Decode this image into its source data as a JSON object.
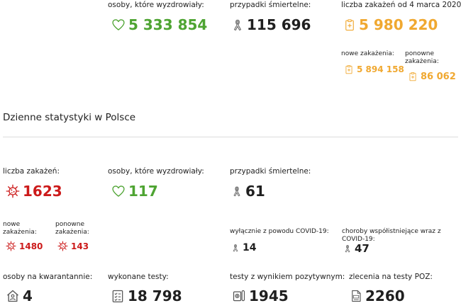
{
  "totals": {
    "recovered": {
      "label": "osoby, które wyzdrowiały:",
      "value": "5 333 854"
    },
    "deaths": {
      "label": "przypadki śmiertelne:",
      "value": "115 696"
    },
    "cases_since": {
      "label": "liczba zakażeń od 4 marca 2020:",
      "value": "5 980 220"
    },
    "new_cases": {
      "label": "nowe zakażenia:",
      "value": "5 894 158"
    },
    "re_cases": {
      "label": "ponowne zakażenia:",
      "value": "86 062"
    }
  },
  "daily": {
    "title": "Dzienne statystyki w Polsce",
    "infections": {
      "label": "liczba zakażeń:",
      "value": "1623"
    },
    "recovered": {
      "label": "osoby, które wyzdrowiały:",
      "value": "117"
    },
    "deaths": {
      "label": "przypadki śmiertelne:",
      "value": "61"
    },
    "new_infections": {
      "label": "nowe zakażenia:",
      "value": "1480"
    },
    "re_infections": {
      "label": "ponowne zakażenia:",
      "value": "143"
    },
    "covid_only": {
      "label": "wyłącznie z powodu COVID-19:",
      "value": "14"
    },
    "comorbid": {
      "label": "choroby współistniejące wraz z COVID-19:",
      "value": "47"
    },
    "quarantine": {
      "label": "osoby na kwarantannie:",
      "value": "4"
    },
    "tests": {
      "label": "wykonane testy:",
      "value": "18 798"
    },
    "positive_tests": {
      "label": "testy z wynikiem pozytywnym:",
      "value": "1945"
    },
    "poz_orders": {
      "label": "zlecenia na testy POZ:",
      "value": "2260"
    }
  },
  "colors": {
    "green": "#4ea432",
    "orange": "#f0a830",
    "red": "#cc1a1a",
    "dark": "#1f1f1f"
  },
  "icons": [
    "heart-icon",
    "ribbon-icon",
    "clipboard-plus-icon",
    "virus-icon",
    "house-person-icon",
    "checklist-icon",
    "test-tube-icon",
    "poz-document-icon"
  ]
}
